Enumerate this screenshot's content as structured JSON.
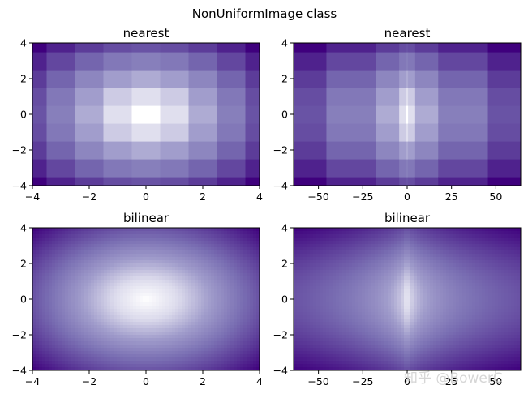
{
  "suptitle": "NonUniformImage class",
  "watermark": "知乎 @BowerC",
  "colormap": {
    "name": "Purples",
    "stops": [
      "#ffffff",
      "#dcdbec",
      "#a09ccb",
      "#7a6fb3",
      "#5b3a98",
      "#3f007d"
    ]
  },
  "chart_data": [
    {
      "type": "heatmap",
      "title": "nearest",
      "interpolation": "nearest",
      "x_axis_transform": "linear",
      "xlim": [
        -4,
        4
      ],
      "ylim": [
        -4,
        4
      ],
      "xticks": [
        -4,
        -2,
        0,
        2,
        4
      ],
      "yticks": [
        -4,
        -2,
        0,
        2,
        4
      ],
      "grid": false
    },
    {
      "type": "heatmap",
      "title": "nearest",
      "interpolation": "nearest",
      "x_axis_transform": "x^3",
      "xlim": [
        -64,
        64
      ],
      "ylim": [
        -4,
        4
      ],
      "xticks": [
        -50,
        -25,
        0,
        25,
        50
      ],
      "yticks": [
        -4,
        -2,
        0,
        2,
        4
      ],
      "grid": false
    },
    {
      "type": "heatmap",
      "title": "bilinear",
      "interpolation": "bilinear",
      "x_axis_transform": "linear",
      "xlim": [
        -4,
        4
      ],
      "ylim": [
        -4,
        4
      ],
      "xticks": [
        -4,
        -2,
        0,
        2,
        4
      ],
      "yticks": [
        -4,
        -2,
        0,
        2,
        4
      ],
      "grid": false
    },
    {
      "type": "heatmap",
      "title": "bilinear",
      "interpolation": "bilinear",
      "x_axis_transform": "x^3",
      "xlim": [
        -64,
        64
      ],
      "ylim": [
        -4,
        4
      ],
      "xticks": [
        -50,
        -25,
        0,
        25,
        50
      ],
      "yticks": [
        -4,
        -2,
        0,
        2,
        4
      ],
      "grid": false
    }
  ]
}
